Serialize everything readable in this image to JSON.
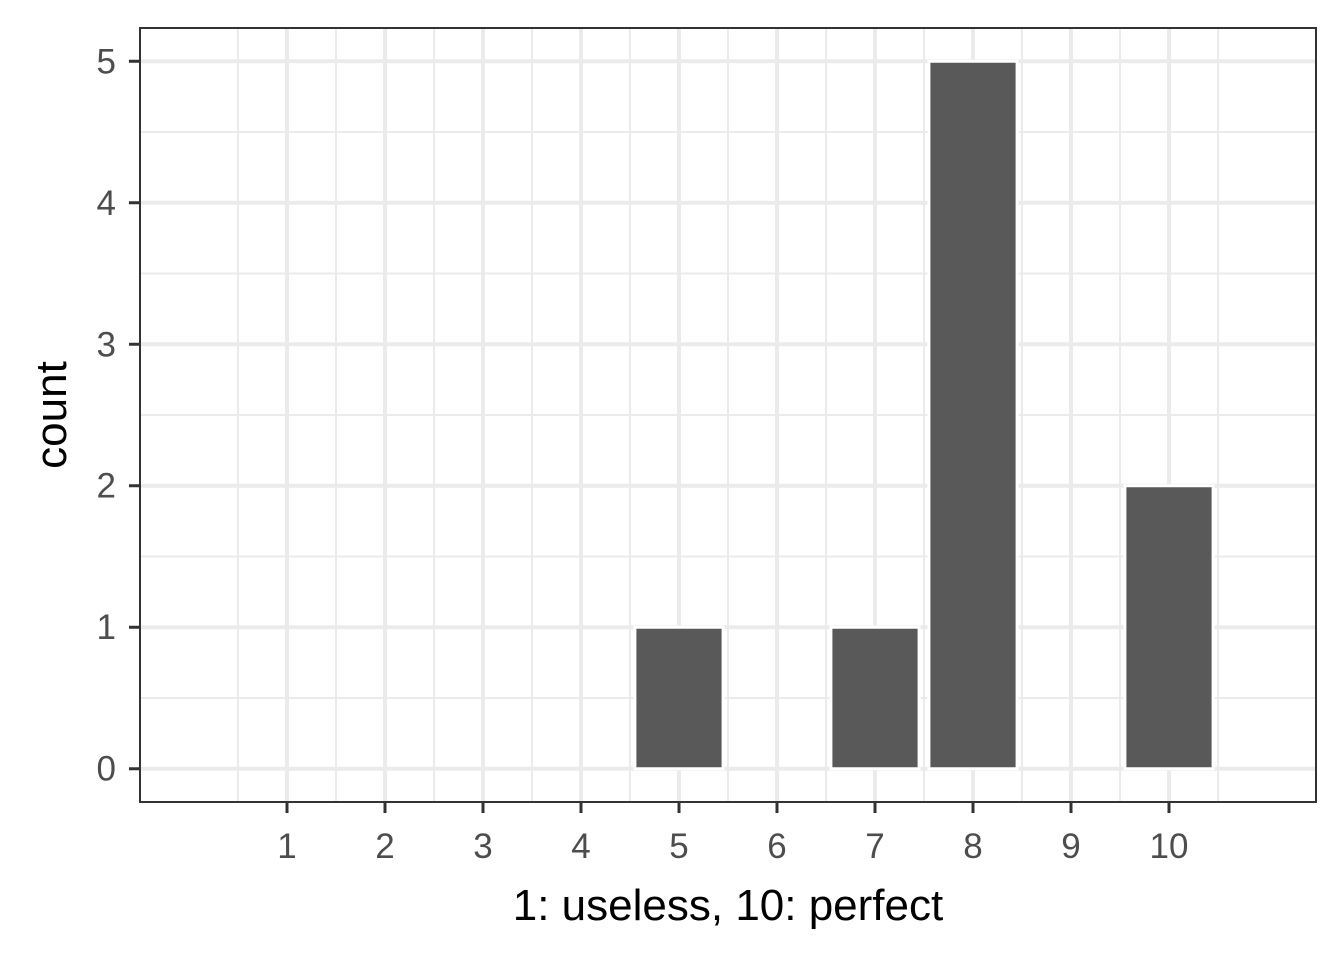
{
  "chart_data": {
    "type": "bar",
    "title": "",
    "xlabel": "1: useless, 10: perfect",
    "ylabel": "count",
    "x_ticks": [
      "1",
      "2",
      "3",
      "4",
      "5",
      "6",
      "7",
      "8",
      "9",
      "10"
    ],
    "y_ticks": [
      "0",
      "1",
      "2",
      "3",
      "4",
      "5"
    ],
    "categories": [
      5,
      7,
      8,
      10
    ],
    "values": [
      1,
      1,
      5,
      2
    ],
    "xlim": [
      -0.5,
      11.5
    ],
    "ylim": [
      -0.235,
      5.235
    ],
    "grid": true,
    "theme": "bw",
    "bar_color": "#595959"
  }
}
